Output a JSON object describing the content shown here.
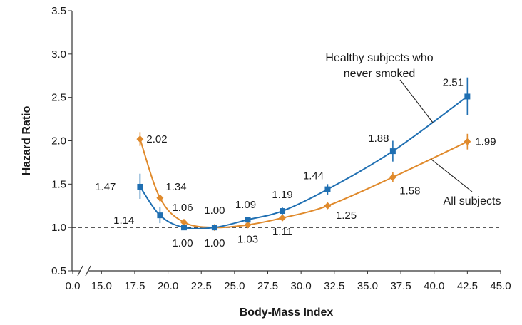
{
  "chart_data": {
    "type": "line",
    "title": "",
    "xlabel": "Body-Mass Index",
    "ylabel": "Hazard Ratio",
    "xlim": [
      0.0,
      45.0
    ],
    "ylim": [
      0.5,
      3.5
    ],
    "x_axis_break": true,
    "xticks": [
      "0.0",
      "15.0",
      "17.5",
      "20.0",
      "22.5",
      "25.0",
      "27.5",
      "30.0",
      "32.5",
      "35.0",
      "37.5",
      "40.0",
      "42.5",
      "45.0"
    ],
    "yticks": [
      "0.5",
      "1.0",
      "1.5",
      "2.0",
      "2.5",
      "3.0",
      "3.5"
    ],
    "reference_line": {
      "y": 1.0,
      "style": "dashed"
    },
    "grid": false,
    "series": [
      {
        "name": "Healthy subjects who never smoked",
        "color": "#1f6fb2",
        "marker": "square",
        "x": [
          17.9,
          19.4,
          21.2,
          23.5,
          26.0,
          28.6,
          32.0,
          36.9,
          42.5
        ],
        "y": [
          1.47,
          1.14,
          1.0,
          1.0,
          1.09,
          1.19,
          1.44,
          1.88,
          2.51
        ],
        "ci_low": [
          1.33,
          1.05,
          0.97,
          0.98,
          1.06,
          1.15,
          1.38,
          1.76,
          2.3
        ],
        "ci_high": [
          1.62,
          1.24,
          1.03,
          1.02,
          1.12,
          1.23,
          1.5,
          2.0,
          2.73
        ],
        "labels": [
          "1.47",
          "1.14",
          "1.00",
          "1.00",
          "1.09",
          "1.19",
          "1.44",
          "1.88",
          "2.51"
        ]
      },
      {
        "name": "All subjects",
        "color": "#e08a2c",
        "marker": "diamond",
        "x": [
          17.9,
          19.4,
          21.2,
          23.5,
          26.0,
          28.6,
          32.0,
          36.9,
          42.5
        ],
        "y": [
          2.02,
          1.34,
          1.06,
          1.0,
          1.03,
          1.11,
          1.25,
          1.58,
          1.99
        ],
        "ci_low": [
          1.94,
          1.3,
          1.04,
          0.99,
          1.02,
          1.1,
          1.23,
          1.52,
          1.9
        ],
        "ci_high": [
          2.1,
          1.38,
          1.08,
          1.01,
          1.04,
          1.12,
          1.27,
          1.64,
          2.08
        ],
        "labels": [
          "2.02",
          "1.34",
          "1.06",
          "1.00",
          "1.03",
          "1.11",
          "1.25",
          "1.58",
          "1.99"
        ]
      }
    ],
    "annotations": [
      {
        "text_lines": [
          "Healthy subjects who",
          "never smoked"
        ],
        "points_to": "Healthy subjects who never smoked"
      },
      {
        "text_lines": [
          "All subjects"
        ],
        "points_to": "All subjects"
      }
    ]
  }
}
